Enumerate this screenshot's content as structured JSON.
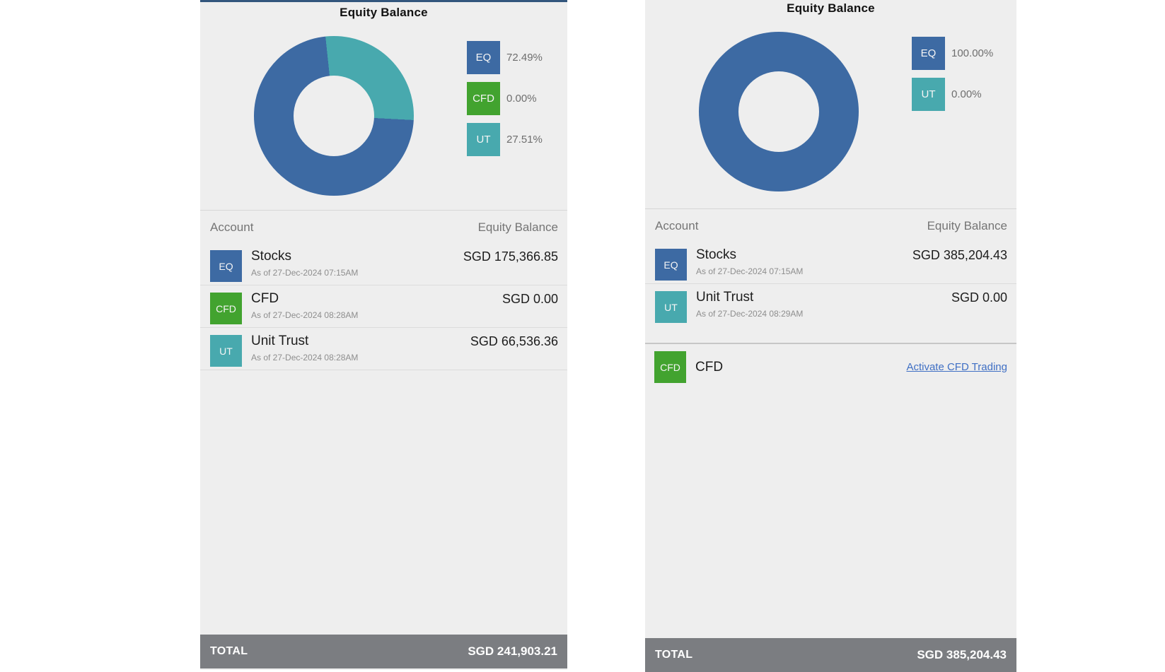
{
  "colors": {
    "eq_blue": "#3d6aa3",
    "cfd_green": "#42a32f",
    "ut_teal": "#48a9ae",
    "panel_background": "#eeeeee",
    "total_bar_gray": "#7b7d81",
    "link_blue": "#3f6fc4",
    "top_accent_blue": "#33567d"
  },
  "panels": [
    {
      "title": "Equity Balance",
      "legend": [
        {
          "code": "EQ",
          "value": "72.49%",
          "color": "#3d6aa3"
        },
        {
          "code": "CFD",
          "value": "0.00%",
          "color": "#42a32f"
        },
        {
          "code": "UT",
          "value": "27.51%",
          "color": "#48a9ae"
        }
      ],
      "table": {
        "account_header": "Account",
        "balance_header": "Equity Balance"
      },
      "rows": [
        {
          "badge": "EQ",
          "color": "#3d6aa3",
          "label": "Stocks",
          "asof": "As of 27-Dec-2024 07:15AM",
          "value": "SGD 175,366.85"
        },
        {
          "badge": "CFD",
          "color": "#42a32f",
          "label": "CFD",
          "asof": "As of 27-Dec-2024 08:28AM",
          "value": "SGD 0.00"
        },
        {
          "badge": "UT",
          "color": "#48a9ae",
          "label": "Unit Trust",
          "asof": "As of 27-Dec-2024 08:28AM",
          "value": "SGD 66,536.36"
        }
      ],
      "total_label": "TOTAL",
      "total_value": "SGD 241,903.21"
    },
    {
      "title": "Equity Balance",
      "legend": [
        {
          "code": "EQ",
          "value": "100.00%",
          "color": "#3d6aa3"
        },
        {
          "code": "UT",
          "value": "0.00%",
          "color": "#48a9ae"
        }
      ],
      "table": {
        "account_header": "Account",
        "balance_header": "Equity Balance"
      },
      "rows": [
        {
          "badge": "EQ",
          "color": "#3d6aa3",
          "label": "Stocks",
          "asof": "As of 27-Dec-2024 07:15AM",
          "value": "SGD 385,204.43"
        },
        {
          "badge": "UT",
          "color": "#48a9ae",
          "label": "Unit Trust",
          "asof": "As of 27-Dec-2024 08:29AM",
          "value": "SGD 0.00"
        }
      ],
      "cfd_row": {
        "badge": "CFD",
        "color": "#42a32f",
        "label": "CFD",
        "link": "Activate CFD Trading"
      },
      "total_label": "TOTAL",
      "total_value": "SGD 385,204.43"
    }
  ],
  "chart_data": [
    {
      "type": "pie",
      "donut": true,
      "title": "Equity Balance",
      "labels": [
        "EQ",
        "CFD",
        "UT"
      ],
      "values": [
        72.49,
        0.0,
        27.51
      ],
      "colors": [
        "#3d6aa3",
        "#42a32f",
        "#48a9ae"
      ],
      "start_angle": 93,
      "legend_position": "right"
    },
    {
      "type": "pie",
      "donut": true,
      "title": "Equity Balance",
      "labels": [
        "EQ",
        "UT"
      ],
      "values": [
        100.0,
        0.0
      ],
      "colors": [
        "#3d6aa3",
        "#48a9ae"
      ],
      "start_angle": 0,
      "legend_position": "right"
    }
  ]
}
